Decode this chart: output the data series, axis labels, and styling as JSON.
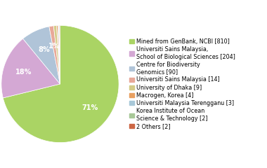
{
  "labels": [
    "Mined from GenBank, NCBI [810]",
    "Universiti Sains Malaysia,\nSchool of Biological Sciences [204]",
    "Centre for Biodiversity\nGenomics [90]",
    "Universiti Sains Malaysia [14]",
    "University of Dhaka [9]",
    "Macrogen, Korea [4]",
    "Universiti Malaysia Terengganu [3]",
    "Korea Institute of Ocean\nScience & Technology [2]",
    "2 Others [2]"
  ],
  "values": [
    810,
    204,
    90,
    14,
    9,
    4,
    3,
    2,
    2
  ],
  "colors": [
    "#aad464",
    "#d4a8d4",
    "#b0c4d8",
    "#e8a898",
    "#d4cc88",
    "#e8a060",
    "#a8c8d8",
    "#a8c898",
    "#cc6644"
  ],
  "legend_labels": [
    "Mined from GenBank, NCBI [810]",
    "Universiti Sains Malaysia,\nSchool of Biological Sciences [204]",
    "Centre for Biodiversity\nGenomics [90]",
    "Universiti Sains Malaysia [14]",
    "University of Dhaka [9]",
    "Macrogen, Korea [4]",
    "Universiti Malaysia Terengganu [3]",
    "Korea Institute of Ocean\nScience & Technology [2]",
    "2 Others [2]"
  ],
  "startangle": 90,
  "pct_threshold": 1.2,
  "fontsize_pct": 7,
  "fontsize_legend": 5.8
}
